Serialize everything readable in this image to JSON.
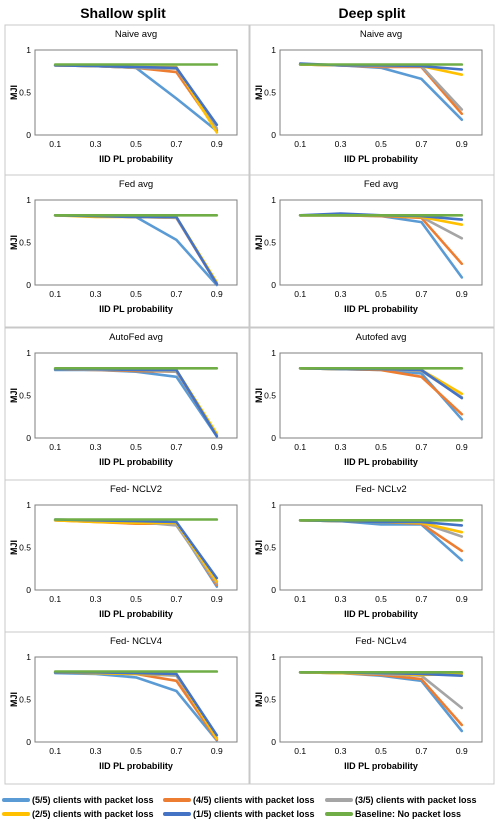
{
  "columns": [
    "Shallow split",
    "Deep split"
  ],
  "legend": [
    {
      "label": "(5/5) clients with packet loss",
      "color": "#5b9bd5"
    },
    {
      "label": "(4/5) clients with packet loss",
      "color": "#ed7d31"
    },
    {
      "label": "(3/5) clients with packet loss",
      "color": "#a5a5a5"
    },
    {
      "label": "(2/5) clients with packet loss",
      "color": "#ffc000"
    },
    {
      "label": "(1/5) clients with packet loss",
      "color": "#4472c4"
    },
    {
      "label": "Baseline: No packet loss",
      "color": "#70ad47"
    }
  ],
  "chart_data": [
    {
      "type": "line",
      "column": "Shallow split",
      "title": "Naive avg",
      "xlabel": "IID PL probability",
      "ylabel": "MJI",
      "categories": [
        "0.1",
        "0.3",
        "0.5",
        "0.7",
        "0.9"
      ],
      "ylim": [
        0,
        1
      ],
      "yticks": [
        "0",
        "0.5",
        "1"
      ],
      "series": [
        {
          "name": "(5/5) clients with packet loss",
          "values": [
            0.82,
            0.81,
            0.79,
            0.43,
            0.05
          ]
        },
        {
          "name": "(4/5) clients with packet loss",
          "values": [
            0.82,
            0.81,
            0.79,
            0.74,
            0.06
          ]
        },
        {
          "name": "(3/5) clients with packet loss",
          "values": [
            0.82,
            0.81,
            0.79,
            0.78,
            0.08
          ]
        },
        {
          "name": "(2/5) clients with packet loss",
          "values": [
            0.82,
            0.81,
            0.8,
            0.8,
            0.03
          ]
        },
        {
          "name": "(1/5) clients with packet loss",
          "values": [
            0.82,
            0.81,
            0.8,
            0.79,
            0.12
          ]
        },
        {
          "name": "Baseline: No packet loss",
          "values": [
            0.83,
            0.83,
            0.83,
            0.83,
            0.83
          ]
        }
      ]
    },
    {
      "type": "line",
      "column": "Deep split",
      "title": "Naive avg",
      "xlabel": "IID PL probability",
      "ylabel": "MJI",
      "categories": [
        "0.1",
        "0.3",
        "0.5",
        "0.7",
        "0.9"
      ],
      "ylim": [
        0,
        1
      ],
      "yticks": [
        "0",
        "0.5",
        "1"
      ],
      "series": [
        {
          "name": "(5/5) clients with packet loss",
          "values": [
            0.83,
            0.82,
            0.79,
            0.66,
            0.18
          ]
        },
        {
          "name": "(4/5) clients with packet loss",
          "values": [
            0.83,
            0.82,
            0.8,
            0.8,
            0.25
          ]
        },
        {
          "name": "(3/5) clients with packet loss",
          "values": [
            0.83,
            0.82,
            0.81,
            0.81,
            0.3
          ]
        },
        {
          "name": "(2/5) clients with packet loss",
          "values": [
            0.83,
            0.82,
            0.82,
            0.81,
            0.71
          ]
        },
        {
          "name": "(1/5) clients with packet loss",
          "values": [
            0.84,
            0.82,
            0.82,
            0.81,
            0.77
          ]
        },
        {
          "name": "Baseline: No packet loss",
          "values": [
            0.83,
            0.83,
            0.83,
            0.83,
            0.83
          ]
        }
      ]
    },
    {
      "type": "line",
      "column": "Shallow split",
      "title": "Fed avg",
      "xlabel": "IID PL probability",
      "ylabel": "MJI",
      "categories": [
        "0.1",
        "0.3",
        "0.5",
        "0.7",
        "0.9"
      ],
      "ylim": [
        0,
        1
      ],
      "yticks": [
        "0",
        "0.5",
        "1"
      ],
      "series": [
        {
          "name": "(5/5) clients with packet loss",
          "values": [
            0.82,
            0.81,
            0.8,
            0.53,
            0.0
          ]
        },
        {
          "name": "(4/5) clients with packet loss",
          "values": [
            0.82,
            0.81,
            0.8,
            0.79,
            0.01
          ]
        },
        {
          "name": "(3/5) clients with packet loss",
          "values": [
            0.82,
            0.81,
            0.8,
            0.79,
            0.02
          ]
        },
        {
          "name": "(2/5) clients with packet loss",
          "values": [
            0.82,
            0.8,
            0.8,
            0.8,
            0.03
          ]
        },
        {
          "name": "(1/5) clients with packet loss",
          "values": [
            0.82,
            0.81,
            0.8,
            0.8,
            0.01
          ]
        },
        {
          "name": "Baseline: No packet loss",
          "values": [
            0.82,
            0.82,
            0.82,
            0.82,
            0.82
          ]
        }
      ]
    },
    {
      "type": "line",
      "column": "Deep split",
      "title": "Fed avg",
      "xlabel": "IID PL probability",
      "ylabel": "MJI",
      "categories": [
        "0.1",
        "0.3",
        "0.5",
        "0.7",
        "0.9"
      ],
      "ylim": [
        0,
        1
      ],
      "yticks": [
        "0",
        "0.5",
        "1"
      ],
      "series": [
        {
          "name": "(5/5) clients with packet loss",
          "values": [
            0.82,
            0.82,
            0.81,
            0.74,
            0.09
          ]
        },
        {
          "name": "(4/5) clients with packet loss",
          "values": [
            0.82,
            0.82,
            0.81,
            0.79,
            0.25
          ]
        },
        {
          "name": "(3/5) clients with packet loss",
          "values": [
            0.82,
            0.82,
            0.82,
            0.8,
            0.55
          ]
        },
        {
          "name": "(2/5) clients with packet loss",
          "values": [
            0.82,
            0.82,
            0.82,
            0.8,
            0.71
          ]
        },
        {
          "name": "(1/5) clients with packet loss",
          "values": [
            0.82,
            0.84,
            0.82,
            0.81,
            0.77
          ]
        },
        {
          "name": "Baseline: No packet loss",
          "values": [
            0.82,
            0.82,
            0.82,
            0.82,
            0.82
          ]
        }
      ]
    },
    {
      "type": "line",
      "column": "Shallow split",
      "title": "AutoFed avg",
      "xlabel": "IID PL probability",
      "ylabel": "MJI",
      "categories": [
        "0.1",
        "0.3",
        "0.5",
        "0.7",
        "0.9"
      ],
      "ylim": [
        0,
        1
      ],
      "yticks": [
        "0",
        "0.5",
        "1"
      ],
      "series": [
        {
          "name": "(5/5) clients with packet loss",
          "values": [
            0.8,
            0.8,
            0.78,
            0.72,
            0.02
          ]
        },
        {
          "name": "(4/5) clients with packet loss",
          "values": [
            0.81,
            0.8,
            0.79,
            0.78,
            0.03
          ]
        },
        {
          "name": "(3/5) clients with packet loss",
          "values": [
            0.81,
            0.8,
            0.8,
            0.78,
            0.04
          ]
        },
        {
          "name": "(2/5) clients with packet loss",
          "values": [
            0.81,
            0.81,
            0.8,
            0.8,
            0.05
          ]
        },
        {
          "name": "(1/5) clients with packet loss",
          "values": [
            0.81,
            0.81,
            0.8,
            0.8,
            0.02
          ]
        },
        {
          "name": "Baseline: No packet loss",
          "values": [
            0.82,
            0.82,
            0.82,
            0.82,
            0.82
          ]
        }
      ]
    },
    {
      "type": "line",
      "column": "Deep split",
      "title": "Autofed avg",
      "xlabel": "IID PL probability",
      "ylabel": "MJI",
      "categories": [
        "0.1",
        "0.3",
        "0.5",
        "0.7",
        "0.9"
      ],
      "ylim": [
        0,
        1
      ],
      "yticks": [
        "0",
        "0.5",
        "1"
      ],
      "series": [
        {
          "name": "(5/5) clients with packet loss",
          "values": [
            0.82,
            0.81,
            0.8,
            0.76,
            0.22
          ]
        },
        {
          "name": "(4/5) clients with packet loss",
          "values": [
            0.82,
            0.81,
            0.8,
            0.72,
            0.28
          ]
        },
        {
          "name": "(3/5) clients with packet loss",
          "values": [
            0.82,
            0.81,
            0.81,
            0.79,
            0.48
          ]
        },
        {
          "name": "(2/5) clients with packet loss",
          "values": [
            0.82,
            0.81,
            0.81,
            0.8,
            0.52
          ]
        },
        {
          "name": "(1/5) clients with packet loss",
          "values": [
            0.82,
            0.81,
            0.81,
            0.8,
            0.47
          ]
        },
        {
          "name": "Baseline: No packet loss",
          "values": [
            0.82,
            0.82,
            0.82,
            0.82,
            0.82
          ]
        }
      ]
    },
    {
      "type": "line",
      "column": "Shallow split",
      "title": "Fed- NCLV2",
      "xlabel": "IID PL probability",
      "ylabel": "MJI",
      "categories": [
        "0.1",
        "0.3",
        "0.5",
        "0.7",
        "0.9"
      ],
      "ylim": [
        0,
        1
      ],
      "yticks": [
        "0",
        "0.5",
        "1"
      ],
      "series": [
        {
          "name": "(5/5) clients with packet loss",
          "values": [
            0.82,
            0.81,
            0.8,
            0.78,
            0.04
          ]
        },
        {
          "name": "(4/5) clients with packet loss",
          "values": [
            0.82,
            0.8,
            0.78,
            0.78,
            0.06
          ]
        },
        {
          "name": "(3/5) clients with packet loss",
          "values": [
            0.82,
            0.81,
            0.8,
            0.76,
            0.08
          ]
        },
        {
          "name": "(2/5) clients with packet loss",
          "values": [
            0.82,
            0.8,
            0.79,
            0.79,
            0.1
          ]
        },
        {
          "name": "(1/5) clients with packet loss",
          "values": [
            0.83,
            0.82,
            0.81,
            0.8,
            0.14
          ]
        },
        {
          "name": "Baseline: No packet loss",
          "values": [
            0.83,
            0.83,
            0.83,
            0.83,
            0.83
          ]
        }
      ]
    },
    {
      "type": "line",
      "column": "Deep split",
      "title": "Fed- NCLv2",
      "xlabel": "IID PL probability",
      "ylabel": "MJI",
      "categories": [
        "0.1",
        "0.3",
        "0.5",
        "0.7",
        "0.9"
      ],
      "ylim": [
        0,
        1
      ],
      "yticks": [
        "0",
        "0.5",
        "1"
      ],
      "series": [
        {
          "name": "(5/5) clients with packet loss",
          "values": [
            0.82,
            0.81,
            0.77,
            0.77,
            0.35
          ]
        },
        {
          "name": "(4/5) clients with packet loss",
          "values": [
            0.82,
            0.81,
            0.8,
            0.78,
            0.46
          ]
        },
        {
          "name": "(3/5) clients with packet loss",
          "values": [
            0.82,
            0.81,
            0.8,
            0.79,
            0.63
          ]
        },
        {
          "name": "(2/5) clients with packet loss",
          "values": [
            0.82,
            0.81,
            0.8,
            0.79,
            0.68
          ]
        },
        {
          "name": "(1/5) clients with packet loss",
          "values": [
            0.82,
            0.81,
            0.8,
            0.8,
            0.76
          ]
        },
        {
          "name": "Baseline: No packet loss",
          "values": [
            0.82,
            0.82,
            0.82,
            0.82,
            0.82
          ]
        }
      ]
    },
    {
      "type": "line",
      "column": "Shallow split",
      "title": "Fed- NCLV4",
      "xlabel": "IID PL probability",
      "ylabel": "MJI",
      "categories": [
        "0.1",
        "0.3",
        "0.5",
        "0.7",
        "0.9"
      ],
      "ylim": [
        0,
        1
      ],
      "yticks": [
        "0",
        "0.5",
        "1"
      ],
      "series": [
        {
          "name": "(5/5) clients with packet loss",
          "values": [
            0.81,
            0.8,
            0.76,
            0.6,
            0.02
          ]
        },
        {
          "name": "(4/5) clients with packet loss",
          "values": [
            0.82,
            0.81,
            0.8,
            0.72,
            0.03
          ]
        },
        {
          "name": "(3/5) clients with packet loss",
          "values": [
            0.82,
            0.81,
            0.8,
            0.78,
            0.05
          ]
        },
        {
          "name": "(2/5) clients with packet loss",
          "values": [
            0.82,
            0.81,
            0.8,
            0.8,
            0.04
          ]
        },
        {
          "name": "(1/5) clients with packet loss",
          "values": [
            0.82,
            0.82,
            0.81,
            0.8,
            0.08
          ]
        },
        {
          "name": "Baseline: No packet loss",
          "values": [
            0.83,
            0.83,
            0.83,
            0.83,
            0.83
          ]
        }
      ]
    },
    {
      "type": "line",
      "column": "Deep split",
      "title": "Fed- NCLv4",
      "xlabel": "IID PL probability",
      "ylabel": "MJI",
      "categories": [
        "0.1",
        "0.3",
        "0.5",
        "0.7",
        "0.9"
      ],
      "ylim": [
        0,
        1
      ],
      "yticks": [
        "0",
        "0.5",
        "1"
      ],
      "series": [
        {
          "name": "(5/5) clients with packet loss",
          "values": [
            0.82,
            0.81,
            0.78,
            0.72,
            0.13
          ]
        },
        {
          "name": "(4/5) clients with packet loss",
          "values": [
            0.82,
            0.81,
            0.79,
            0.74,
            0.2
          ]
        },
        {
          "name": "(3/5) clients with packet loss",
          "values": [
            0.82,
            0.81,
            0.8,
            0.78,
            0.4
          ]
        },
        {
          "name": "(2/5) clients with packet loss",
          "values": [
            0.82,
            0.81,
            0.81,
            0.79,
            0.8
          ]
        },
        {
          "name": "(1/5) clients with packet loss",
          "values": [
            0.82,
            0.82,
            0.81,
            0.8,
            0.78
          ]
        },
        {
          "name": "Baseline: No packet loss",
          "values": [
            0.82,
            0.82,
            0.82,
            0.82,
            0.82
          ]
        }
      ]
    }
  ]
}
